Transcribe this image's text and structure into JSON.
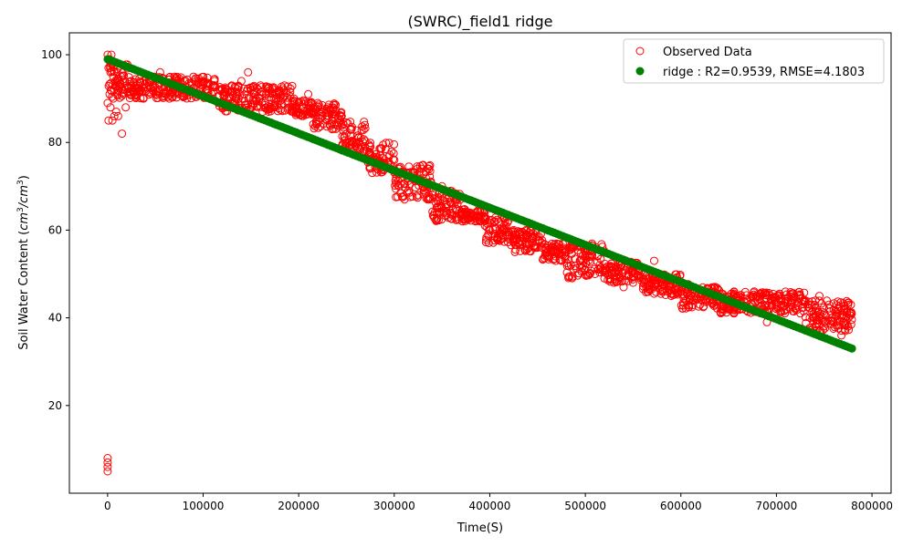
{
  "chart_data": {
    "type": "scatter",
    "title": "(SWRC)_field1 ridge",
    "xlabel": "Time(S)",
    "ylabel_main": "Soil Water Content (",
    "ylabel_unit_base1": "cm",
    "ylabel_unit_exp1": "3",
    "ylabel_unit_sep": "/",
    "ylabel_unit_base2": "cm",
    "ylabel_unit_exp2": "3",
    "ylabel_close": ")",
    "xlim": [
      -40000,
      820000
    ],
    "ylim": [
      0,
      105
    ],
    "xticks": [
      {
        "value": 0,
        "label": "0"
      },
      {
        "value": 100000,
        "label": "100000"
      },
      {
        "value": 200000,
        "label": "200000"
      },
      {
        "value": 300000,
        "label": "300000"
      },
      {
        "value": 400000,
        "label": "400000"
      },
      {
        "value": 500000,
        "label": "500000"
      },
      {
        "value": 600000,
        "label": "600000"
      },
      {
        "value": 700000,
        "label": "700000"
      },
      {
        "value": 800000,
        "label": "800000"
      }
    ],
    "yticks": [
      {
        "value": 20,
        "label": "20"
      },
      {
        "value": 40,
        "label": "40"
      },
      {
        "value": 60,
        "label": "60"
      },
      {
        "value": 80,
        "label": "80"
      },
      {
        "value": 100,
        "label": "100"
      }
    ],
    "grid": false,
    "legend_position": "top-right",
    "series": [
      {
        "name": "Observed Data",
        "marker": "hollow-circle",
        "color": "#ff0000",
        "points": [
          [
            0,
            100
          ],
          [
            2000,
            99
          ],
          [
            4000,
            100
          ],
          [
            1000,
            97
          ],
          [
            3000,
            96
          ],
          [
            5000,
            98
          ],
          [
            6000,
            95
          ],
          [
            8000,
            94
          ],
          [
            10000,
            96
          ],
          [
            12000,
            93
          ],
          [
            14000,
            95
          ],
          [
            16000,
            92
          ],
          [
            18000,
            94
          ],
          [
            20000,
            93
          ],
          [
            0,
            89
          ],
          [
            1000,
            85
          ],
          [
            3000,
            88
          ],
          [
            5000,
            85
          ],
          [
            7000,
            86
          ],
          [
            9000,
            87
          ],
          [
            11000,
            86
          ],
          [
            15000,
            82
          ],
          [
            19000,
            88
          ],
          [
            2000,
            91
          ],
          [
            6000,
            90
          ],
          [
            10000,
            91
          ],
          [
            0,
            8
          ],
          [
            0,
            7
          ],
          [
            0,
            6
          ],
          [
            0,
            5
          ],
          [
            25000,
            94
          ],
          [
            30000,
            93
          ],
          [
            35000,
            92
          ],
          [
            40000,
            95
          ],
          [
            45000,
            94
          ],
          [
            50000,
            91
          ],
          [
            55000,
            96
          ],
          [
            60000,
            93
          ],
          [
            65000,
            92
          ],
          [
            70000,
            95
          ],
          [
            75000,
            91
          ],
          [
            80000,
            94
          ],
          [
            85000,
            92
          ],
          [
            90000,
            95
          ],
          [
            95000,
            91
          ],
          [
            100000,
            94
          ],
          [
            105000,
            92
          ],
          [
            110000,
            93
          ],
          [
            120000,
            92
          ],
          [
            125000,
            90
          ],
          [
            130000,
            93
          ],
          [
            135000,
            91
          ],
          [
            140000,
            94
          ],
          [
            147000,
            96
          ],
          [
            150000,
            92
          ],
          [
            155000,
            90
          ],
          [
            160000,
            93
          ],
          [
            165000,
            89
          ],
          [
            170000,
            92
          ],
          [
            175000,
            88
          ],
          [
            180000,
            91
          ],
          [
            185000,
            93
          ],
          [
            190000,
            88
          ],
          [
            195000,
            90
          ],
          [
            200000,
            89
          ],
          [
            205000,
            88
          ],
          [
            210000,
            91
          ],
          [
            215000,
            87
          ],
          [
            220000,
            89
          ],
          [
            225000,
            86
          ],
          [
            230000,
            88
          ],
          [
            235000,
            85
          ],
          [
            240000,
            84
          ],
          [
            245000,
            86
          ],
          [
            250000,
            82
          ],
          [
            255000,
            83
          ],
          [
            260000,
            80
          ],
          [
            265000,
            81
          ],
          [
            270000,
            78
          ],
          [
            275000,
            79
          ],
          [
            280000,
            76
          ],
          [
            285000,
            77
          ],
          [
            290000,
            75
          ],
          [
            295000,
            74
          ],
          [
            300000,
            76
          ],
          [
            302000,
            72
          ],
          [
            305000,
            70
          ],
          [
            310000,
            73
          ],
          [
            315000,
            69
          ],
          [
            320000,
            72
          ],
          [
            325000,
            68
          ],
          [
            330000,
            70
          ],
          [
            335000,
            67
          ],
          [
            340000,
            68
          ],
          [
            345000,
            65
          ],
          [
            350000,
            70
          ],
          [
            355000,
            64
          ],
          [
            360000,
            66
          ],
          [
            365000,
            63
          ],
          [
            370000,
            64
          ],
          [
            375000,
            64
          ],
          [
            380000,
            63
          ],
          [
            385000,
            64
          ],
          [
            390000,
            62
          ],
          [
            395000,
            61
          ],
          [
            400000,
            60
          ],
          [
            405000,
            62
          ],
          [
            410000,
            59
          ],
          [
            415000,
            61
          ],
          [
            420000,
            58
          ],
          [
            425000,
            60
          ],
          [
            430000,
            57
          ],
          [
            435000,
            59
          ],
          [
            440000,
            56
          ],
          [
            445000,
            58
          ],
          [
            450000,
            56
          ],
          [
            455000,
            56
          ],
          [
            460000,
            55
          ],
          [
            465000,
            56
          ],
          [
            470000,
            55
          ],
          [
            475000,
            53
          ],
          [
            480000,
            55
          ],
          [
            485000,
            52
          ],
          [
            490000,
            57
          ],
          [
            495000,
            53
          ],
          [
            500000,
            51
          ],
          [
            505000,
            54
          ],
          [
            510000,
            50
          ],
          [
            515000,
            52
          ],
          [
            520000,
            49
          ],
          [
            525000,
            51
          ],
          [
            530000,
            48
          ],
          [
            535000,
            50
          ],
          [
            540000,
            47
          ],
          [
            545000,
            50
          ],
          [
            550000,
            48
          ],
          [
            555000,
            51
          ],
          [
            560000,
            49
          ],
          [
            565000,
            46
          ],
          [
            570000,
            48
          ],
          [
            572000,
            53
          ],
          [
            575000,
            47
          ],
          [
            580000,
            46
          ],
          [
            585000,
            48
          ],
          [
            590000,
            45
          ],
          [
            595000,
            49
          ],
          [
            600000,
            46
          ],
          [
            605000,
            44
          ],
          [
            610000,
            47
          ],
          [
            615000,
            45
          ],
          [
            620000,
            43
          ],
          [
            625000,
            46
          ],
          [
            630000,
            44
          ],
          [
            635000,
            43
          ],
          [
            640000,
            45
          ],
          [
            645000,
            42
          ],
          [
            650000,
            44
          ],
          [
            655000,
            43
          ],
          [
            660000,
            45
          ],
          [
            665000,
            42
          ],
          [
            670000,
            44
          ],
          [
            675000,
            43
          ],
          [
            680000,
            45
          ],
          [
            685000,
            42
          ],
          [
            690000,
            39
          ],
          [
            695000,
            44
          ],
          [
            700000,
            42
          ],
          [
            705000,
            43
          ],
          [
            710000,
            42
          ],
          [
            715000,
            43
          ],
          [
            720000,
            42
          ],
          [
            725000,
            41
          ],
          [
            730000,
            44
          ],
          [
            735000,
            40
          ],
          [
            740000,
            43
          ],
          [
            745000,
            45
          ],
          [
            750000,
            41
          ],
          [
            755000,
            43
          ],
          [
            760000,
            39
          ],
          [
            765000,
            42
          ],
          [
            770000,
            40
          ],
          [
            775000,
            38
          ],
          [
            778000,
            43
          ],
          [
            772000,
            37
          ],
          [
            768000,
            36
          ]
        ],
        "bands": [
          {
            "x0": 1000,
            "x1": 22000,
            "y0": 90,
            "y1": 98
          },
          {
            "x0": 22000,
            "x1": 115000,
            "y0": 90,
            "y1": 95
          },
          {
            "x0": 115000,
            "x1": 195000,
            "y0": 87,
            "y1": 93
          },
          {
            "x0": 195000,
            "x1": 215000,
            "y0": 86,
            "y1": 90
          },
          {
            "x0": 215000,
            "x1": 245000,
            "y0": 83,
            "y1": 89
          },
          {
            "x0": 245000,
            "x1": 270000,
            "y0": 78,
            "y1": 85
          },
          {
            "x0": 270000,
            "x1": 300000,
            "y0": 73,
            "y1": 80
          },
          {
            "x0": 300000,
            "x1": 340000,
            "y0": 67,
            "y1": 75
          },
          {
            "x0": 340000,
            "x1": 370000,
            "y0": 62,
            "y1": 69
          },
          {
            "x0": 370000,
            "x1": 395000,
            "y0": 62,
            "y1": 65
          },
          {
            "x0": 395000,
            "x1": 420000,
            "y0": 57,
            "y1": 63
          },
          {
            "x0": 420000,
            "x1": 455000,
            "y0": 55,
            "y1": 60
          },
          {
            "x0": 455000,
            "x1": 480000,
            "y0": 53,
            "y1": 57
          },
          {
            "x0": 480000,
            "x1": 520000,
            "y0": 49,
            "y1": 57
          },
          {
            "x0": 520000,
            "x1": 560000,
            "y0": 48,
            "y1": 53
          },
          {
            "x0": 560000,
            "x1": 600000,
            "y0": 45,
            "y1": 50
          },
          {
            "x0": 600000,
            "x1": 640000,
            "y0": 42,
            "y1": 48
          },
          {
            "x0": 640000,
            "x1": 730000,
            "y0": 41,
            "y1": 46
          },
          {
            "x0": 730000,
            "x1": 779000,
            "y0": 37,
            "y1": 44
          }
        ]
      },
      {
        "name": "ridge : R2=0.9539, RMSE=4.1803",
        "marker": "filled-circle",
        "color": "#008000",
        "line": {
          "x0": 0,
          "y0": 99,
          "x1": 779000,
          "y1": 33
        }
      }
    ]
  }
}
